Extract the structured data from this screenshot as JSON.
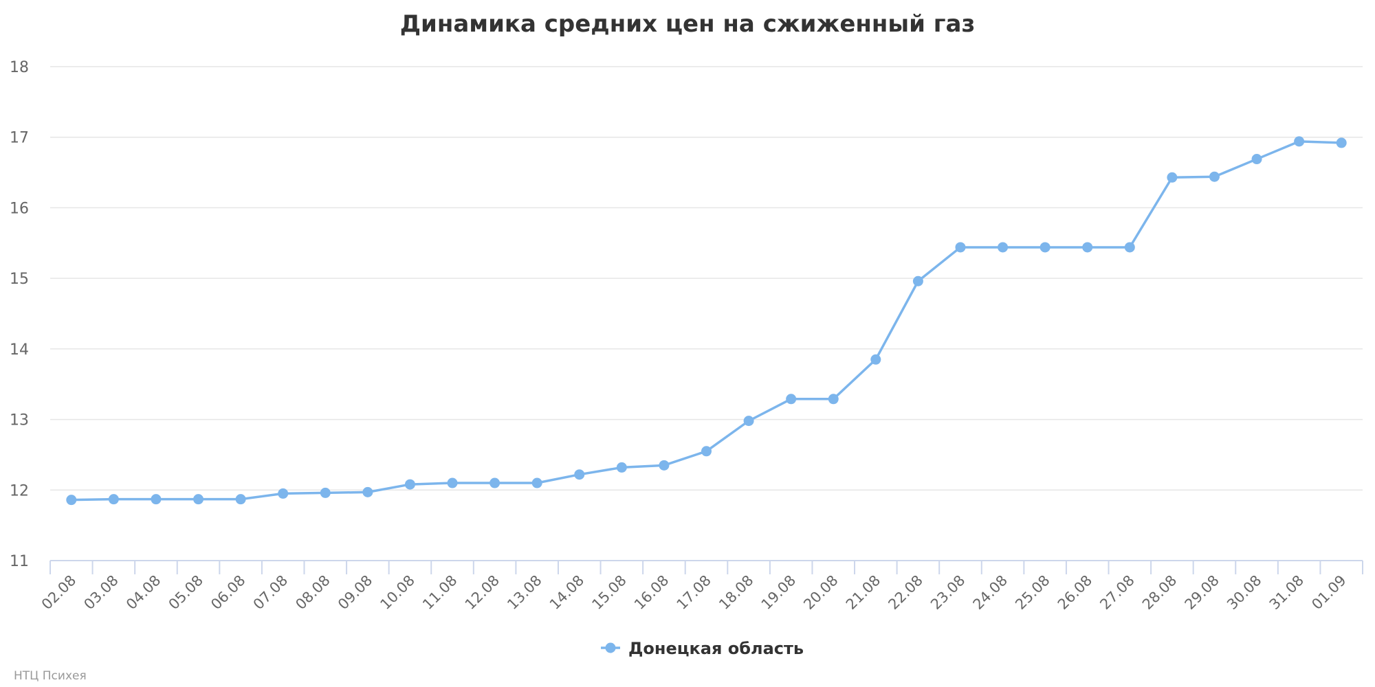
{
  "chart_data": {
    "type": "line",
    "title": "Динамика средних цен на сжиженный газ",
    "ylim": [
      11,
      18
    ],
    "yticks": [
      11,
      12,
      13,
      14,
      15,
      16,
      17,
      18
    ],
    "grid": true,
    "legend_position": "bottom-center",
    "categories": [
      "02.08",
      "03.08",
      "04.08",
      "05.08",
      "06.08",
      "07.08",
      "08.08",
      "09.08",
      "10.08",
      "11.08",
      "12.08",
      "13.08",
      "14.08",
      "15.08",
      "16.08",
      "17.08",
      "18.08",
      "19.08",
      "20.08",
      "21.08",
      "22.08",
      "23.08",
      "24.08",
      "25.08",
      "26.08",
      "27.08",
      "28.08",
      "29.08",
      "30.08",
      "31.08",
      "01.09"
    ],
    "series": [
      {
        "name": "Донецкая область",
        "color": "#7cb5ec",
        "values": [
          11.86,
          11.87,
          11.87,
          11.87,
          11.87,
          11.95,
          11.96,
          11.97,
          12.08,
          12.1,
          12.1,
          12.1,
          12.22,
          12.32,
          12.35,
          12.55,
          12.98,
          13.29,
          13.29,
          13.85,
          14.96,
          15.44,
          15.44,
          15.44,
          15.44,
          15.44,
          16.43,
          16.44,
          16.69,
          16.94,
          16.92
        ]
      }
    ]
  },
  "credit": "НТЦ Психея"
}
